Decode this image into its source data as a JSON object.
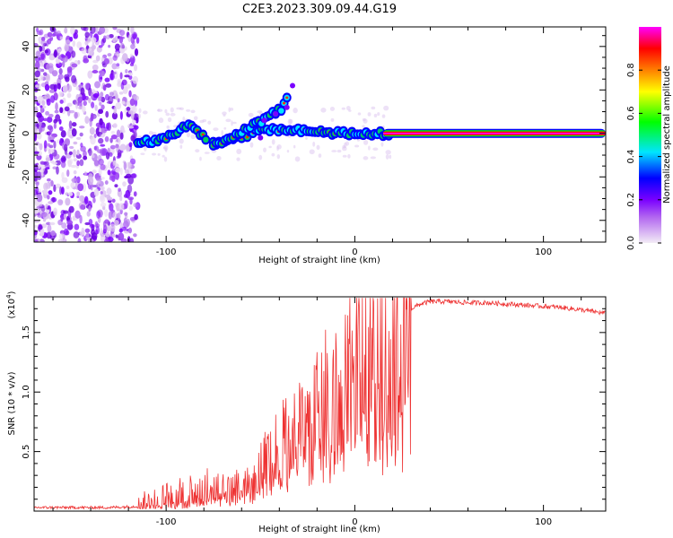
{
  "title": "C2E3.2023.309.09.44.G19",
  "chart_data": [
    {
      "type": "heatmap",
      "xlabel": "Height of straight line (km)",
      "ylabel": "Frequency (Hz)",
      "xlim": [
        -170,
        133
      ],
      "ylim": [
        -50,
        49
      ],
      "xticks": [
        -100,
        0,
        100
      ],
      "yticks": [
        -40,
        -20,
        0,
        20,
        40
      ],
      "colorbar": {
        "label": "Normalized spectral amplitude",
        "range": [
          0,
          1
        ],
        "ticks": [
          0.0,
          0.2,
          0.4,
          0.6,
          0.8
        ],
        "colors": [
          "#f3ecf6",
          "#b266f0",
          "#7a00ff",
          "#0000ff",
          "#00e5ff",
          "#00ff00",
          "#ffff00",
          "#ff8000",
          "#ff0000",
          "#ff00ff"
        ]
      },
      "ridge": {
        "x": [
          -115,
          -105,
          -95,
          -88,
          -75,
          -65,
          -55,
          -45,
          -35,
          -25,
          -15,
          -5,
          0,
          10,
          20,
          133
        ],
        "y": [
          -4,
          -3,
          0,
          5,
          -5,
          -3,
          0,
          2,
          2,
          1,
          0,
          0,
          0,
          0,
          0,
          0
        ]
      },
      "branch": {
        "x": [
          -75,
          -65,
          -55,
          -45,
          -38,
          -33
        ],
        "y": [
          -5,
          -2,
          3,
          8,
          12,
          22
        ]
      },
      "grid": false
    },
    {
      "type": "line",
      "xlabel": "Height of straight line (km)",
      "ylabel": "SNR (10 * v/v)",
      "ymultiplier": "(x10",
      "ymultiplier_exp": "4",
      "xlim": [
        -170,
        133
      ],
      "ylim": [
        0,
        1.8
      ],
      "xticks": [
        -100,
        0,
        100
      ],
      "yticks": [
        0.5,
        1.0,
        1.5
      ],
      "color": "#ee3333",
      "series": [
        {
          "x": [
            -170,
            -150,
            -130,
            -115,
            -108,
            -100,
            -90,
            -80,
            -75,
            -70,
            -60,
            -50,
            -45,
            -40,
            -35,
            -30,
            -25,
            -20,
            -15,
            -10,
            -5,
            0,
            5,
            10,
            15,
            20,
            25,
            30,
            35,
            40,
            50,
            60,
            70,
            80,
            90,
            100,
            110,
            120,
            133
          ],
          "y": [
            0.03,
            0.03,
            0.03,
            0.04,
            0.1,
            0.12,
            0.15,
            0.18,
            0.22,
            0.18,
            0.2,
            0.35,
            0.45,
            0.55,
            0.6,
            0.68,
            0.72,
            0.9,
            1.0,
            1.1,
            1.2,
            1.3,
            1.4,
            1.45,
            1.5,
            1.55,
            1.62,
            1.7,
            1.74,
            1.76,
            1.76,
            1.75,
            1.75,
            1.74,
            1.73,
            1.72,
            1.71,
            1.69,
            1.66
          ]
        }
      ],
      "grid": false
    }
  ]
}
